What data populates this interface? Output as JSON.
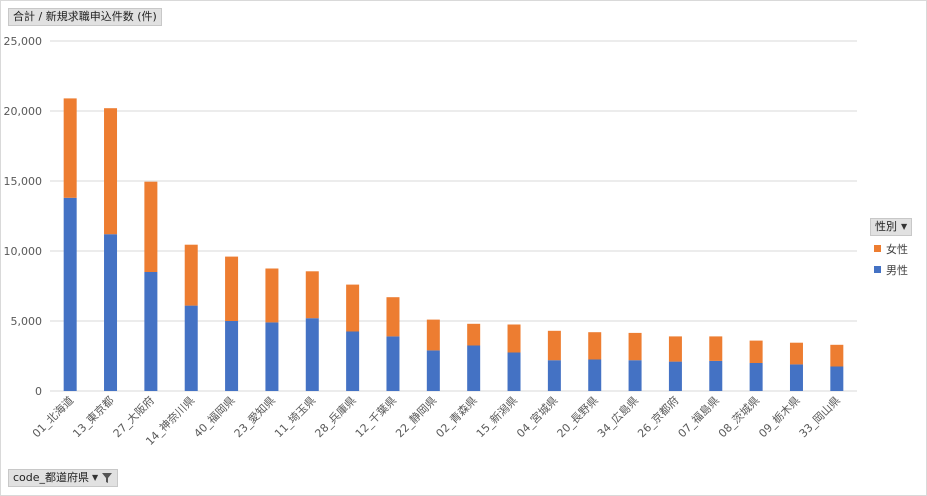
{
  "value_field": {
    "label": "合計 / 新規求職申込件数 (件)"
  },
  "row_field": {
    "label": "code_都道府県"
  },
  "legend_field": {
    "label": "性別"
  },
  "colors": {
    "male": "#4472c4",
    "female": "#ed7d31",
    "grid": "#d9d9d9",
    "axis_text": "#595959"
  },
  "icons": {
    "dropdown": "chevron-down-icon",
    "filter": "filter-icon"
  },
  "chart_data": {
    "type": "bar",
    "stacked": true,
    "title": "",
    "xlabel": "",
    "ylabel": "",
    "ylim": [
      0,
      25000
    ],
    "yticks": [
      "0",
      "5,000",
      "10,000",
      "15,000",
      "20,000",
      "25,000"
    ],
    "grid": true,
    "legend_position": "right",
    "categories": [
      "01_北海道",
      "13_東京都",
      "27_大阪府",
      "14_神奈川県",
      "40_福岡県",
      "23_愛知県",
      "11_埼玉県",
      "28_兵庫県",
      "12_千葉県",
      "22_静岡県",
      "02_青森県",
      "15_新潟県",
      "04_宮城県",
      "20_長野県",
      "34_広島県",
      "26_京都府",
      "07_福島県",
      "08_茨城県",
      "09_栃木県",
      "33_岡山県"
    ],
    "series": [
      {
        "name": "男性",
        "color": "#4472c4",
        "values": [
          13800,
          11200,
          8500,
          6100,
          5000,
          4900,
          5200,
          4250,
          3900,
          2900,
          3250,
          2750,
          2200,
          2250,
          2200,
          2100,
          2150,
          2000,
          1900,
          1750
        ]
      },
      {
        "name": "女性",
        "color": "#ed7d31",
        "values": [
          7100,
          9000,
          6450,
          4350,
          4600,
          3850,
          3350,
          3350,
          2800,
          2200,
          1550,
          2000,
          2100,
          1950,
          1950,
          1800,
          1750,
          1600,
          1550,
          1550
        ]
      }
    ],
    "legend": [
      "女性",
      "男性"
    ]
  }
}
